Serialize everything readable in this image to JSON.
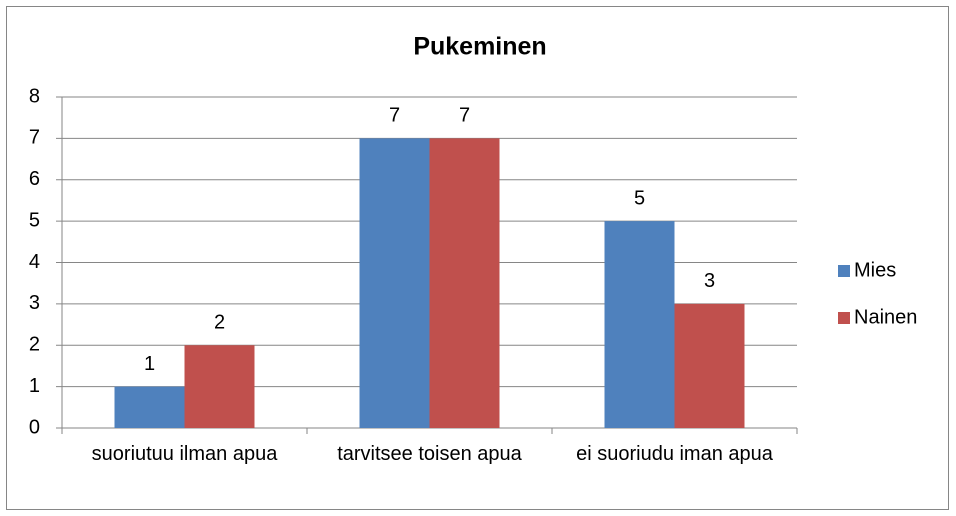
{
  "chart_data": {
    "type": "bar",
    "title": "Pukeminen",
    "categories": [
      "suoriutuu ilman apua",
      "tarvitsee toisen apua",
      "ei suoriudu iman apua"
    ],
    "series": [
      {
        "name": "Mies",
        "color": "#4f81bd",
        "values": [
          1,
          7,
          5
        ]
      },
      {
        "name": "Nainen",
        "color": "#c0504d",
        "values": [
          2,
          7,
          3
        ]
      }
    ],
    "ylim": [
      0,
      8
    ],
    "yticks": [
      0,
      1,
      2,
      3,
      4,
      5,
      6,
      7,
      8
    ],
    "grid": true,
    "legend": "right"
  }
}
